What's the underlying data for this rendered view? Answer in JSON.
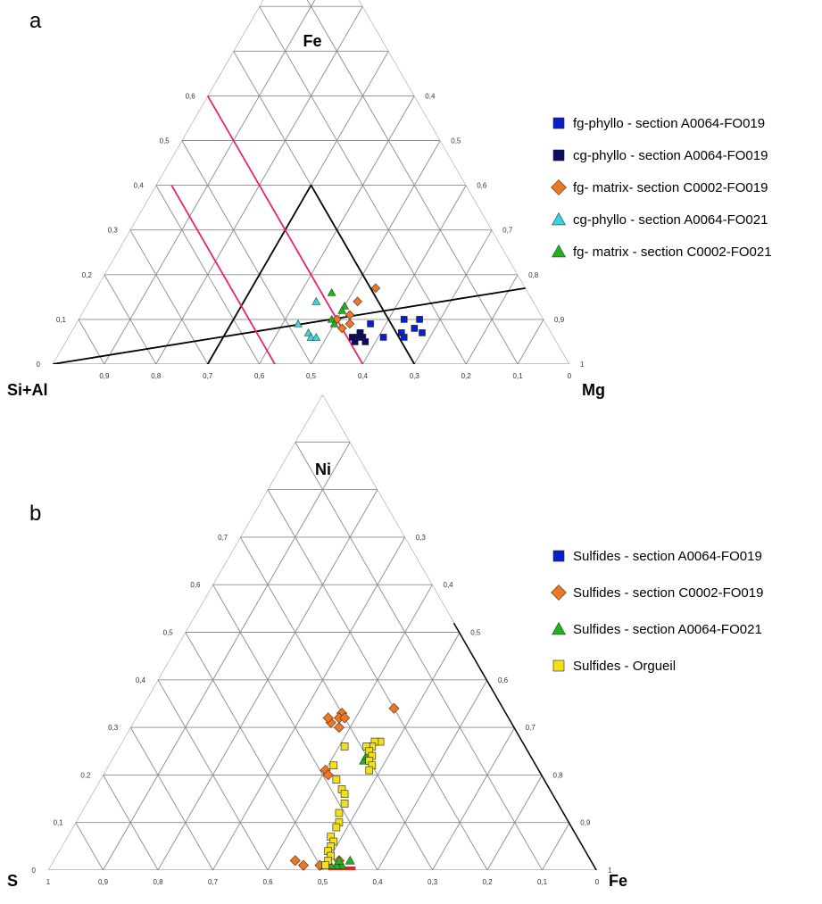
{
  "chart_data": [
    {
      "panel": "a",
      "type": "scatter",
      "subtype": "ternary",
      "apex_top": "Fe",
      "apex_left": "Si+Al",
      "apex_right": "Mg",
      "tick_labels_left": [
        "0",
        "0,1",
        "0,2",
        "0,3",
        "0,4",
        "0,5",
        "0,6"
      ],
      "tick_labels_right": [
        "0,4",
        "0,5",
        "0,6",
        "0,7",
        "0,8",
        "0,9",
        "1"
      ],
      "tick_labels_bottom": [
        "0,9",
        "0,8",
        "0,7",
        "0,6",
        "0,5",
        "0,4",
        "0,3",
        "0,2",
        "0,1",
        "0"
      ],
      "series": [
        {
          "name": "fg-phyllo - section A0064-FO019",
          "marker": "square",
          "color": "#0a1ecc",
          "points": [
            [
              0.1,
              0.66
            ],
            [
              0.1,
              0.63
            ],
            [
              0.08,
              0.66
            ],
            [
              0.07,
              0.68
            ],
            [
              0.07,
              0.64
            ],
            [
              0.06,
              0.65
            ],
            [
              0.06,
              0.61
            ],
            [
              0.07,
              0.56
            ],
            [
              0.09,
              0.57
            ]
          ]
        },
        {
          "name": "cg-phyllo - section A0064-FO019",
          "marker": "square",
          "color": "#0b0b66",
          "points": [
            [
              0.07,
              0.56
            ],
            [
              0.06,
              0.56
            ],
            [
              0.05,
              0.56
            ],
            [
              0.06,
              0.57
            ],
            [
              0.05,
              0.58
            ],
            [
              0.06,
              0.55
            ]
          ]
        },
        {
          "name": "fg- matrix- section C0002-FO019",
          "marker": "diamond",
          "color": "#e8782a",
          "points": [
            [
              0.17,
              0.54
            ],
            [
              0.14,
              0.52
            ],
            [
              0.11,
              0.52
            ],
            [
              0.09,
              0.53
            ],
            [
              0.08,
              0.52
            ],
            [
              0.1,
              0.5
            ]
          ]
        },
        {
          "name": "cg-phyllo - section A0064-FO021",
          "marker": "triangle",
          "color": "#3fd0e8",
          "points": [
            [
              0.14,
              0.44
            ],
            [
              0.09,
              0.43
            ],
            [
              0.07,
              0.46
            ],
            [
              0.06,
              0.47
            ],
            [
              0.06,
              0.48
            ]
          ]
        },
        {
          "name": "fg- matrix - section C0002-FO021",
          "marker": "triangle",
          "color": "#22b022",
          "points": [
            [
              0.16,
              0.46
            ],
            [
              0.13,
              0.5
            ],
            [
              0.12,
              0.5
            ],
            [
              0.1,
              0.49
            ],
            [
              0.09,
              0.5
            ]
          ]
        }
      ],
      "lines": [
        {
          "color": "#000000",
          "from": [
            0,
            0.3
          ],
          "to": [
            0.4,
            0.3
          ]
        },
        {
          "color": "#000000",
          "from": [
            0.4,
            0.3
          ],
          "to": [
            0,
            0.7
          ]
        },
        {
          "color": "#000000",
          "from": [
            0,
            0
          ],
          "to": [
            0.17,
            0.83
          ]
        },
        {
          "color": "#e8236e",
          "from": [
            0.6,
            0
          ],
          "to": [
            0,
            0.6
          ]
        },
        {
          "color": "#e8236e",
          "from": [
            0.4,
            0.03
          ],
          "to": [
            0,
            0.43
          ]
        }
      ]
    },
    {
      "panel": "b",
      "type": "scatter",
      "subtype": "ternary",
      "apex_top": "Ni",
      "apex_left": "S",
      "apex_right": "Fe",
      "tick_labels_left": [
        "0",
        "0,1",
        "0,2",
        "0,3",
        "0,4",
        "0,5",
        "0,6",
        "0,7"
      ],
      "tick_labels_right": [
        "0,3",
        "0,4",
        "0,5",
        "0,6",
        "0,7",
        "0,8",
        "0,9",
        "1"
      ],
      "tick_labels_bottom": [
        "1",
        "0,9",
        "0,8",
        "0,7",
        "0,6",
        "0,5",
        "0,4",
        "0,3",
        "0,2",
        "0,1",
        "0"
      ],
      "series": [
        {
          "name": "Sulfides - section A0064-FO019",
          "marker": "square",
          "color": "#0a1ecc",
          "points": [
            [
              0.01,
              0.5
            ]
          ]
        },
        {
          "name": "Sulfides - section C0002-FO019",
          "marker": "diamond",
          "color": "#e8782a",
          "points": [
            [
              0.01,
              0.46
            ],
            [
              0.02,
              0.44
            ],
            [
              0.34,
              0.46
            ],
            [
              0.33,
              0.37
            ],
            [
              0.32,
              0.37
            ],
            [
              0.32,
              0.38
            ],
            [
              0.31,
              0.36
            ],
            [
              0.32,
              0.35
            ],
            [
              0.3,
              0.38
            ],
            [
              0.21,
              0.4
            ],
            [
              0.2,
              0.41
            ],
            [
              0.02,
              0.52
            ],
            [
              0.01,
              0.49
            ]
          ]
        },
        {
          "name": "Sulfides - section A0064-FO021",
          "marker": "triangle",
          "color": "#22b022",
          "points": [
            [
              0.02,
              0.54
            ],
            [
              0.01,
              0.53
            ],
            [
              0.01,
              0.52
            ],
            [
              0.02,
              0.52
            ],
            [
              0.01,
              0.51
            ],
            [
              0.01,
              0.5
            ],
            [
              0.23,
              0.46
            ],
            [
              0.24,
              0.46
            ]
          ]
        },
        {
          "name": "Sulfides - Orgueil",
          "marker": "square",
          "color": "#f2e01a",
          "points": [
            [
              0.27,
              0.47
            ],
            [
              0.27,
              0.46
            ],
            [
              0.26,
              0.46
            ],
            [
              0.26,
              0.45
            ],
            [
              0.25,
              0.46
            ],
            [
              0.24,
              0.47
            ],
            [
              0.23,
              0.47
            ],
            [
              0.22,
              0.48
            ],
            [
              0.21,
              0.48
            ],
            [
              0.26,
              0.41
            ],
            [
              0.22,
              0.41
            ],
            [
              0.19,
              0.43
            ],
            [
              0.17,
              0.45
            ],
            [
              0.16,
              0.46
            ],
            [
              0.14,
              0.47
            ],
            [
              0.12,
              0.47
            ],
            [
              0.1,
              0.48
            ],
            [
              0.09,
              0.48
            ],
            [
              0.07,
              0.48
            ],
            [
              0.06,
              0.49
            ],
            [
              0.05,
              0.49
            ],
            [
              0.04,
              0.49
            ],
            [
              0.03,
              0.5
            ],
            [
              0.02,
              0.5
            ],
            [
              0.01,
              0.5
            ]
          ]
        }
      ],
      "lines": [
        {
          "color": "#000000",
          "from": [
            0.52,
            0.48
          ],
          "to": [
            0,
            1.0
          ]
        },
        {
          "color": "#ee2020",
          "from": [
            0,
            0.56
          ],
          "to": [
            0,
            0.51
          ]
        }
      ]
    }
  ]
}
